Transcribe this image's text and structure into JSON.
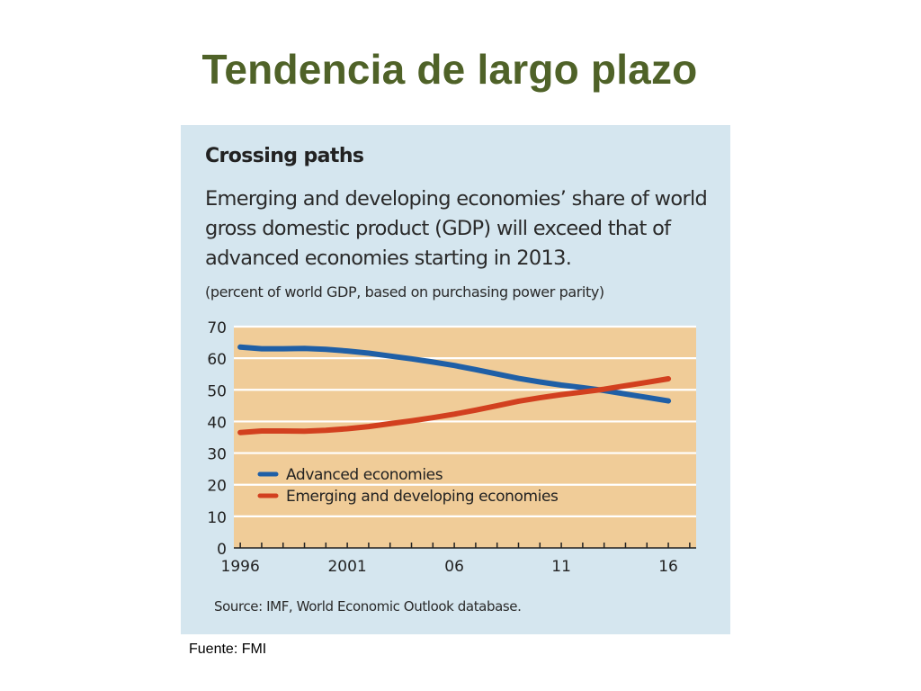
{
  "slide": {
    "title": "Tendencia de largo plazo",
    "footer_note": "Fuente: FMI"
  },
  "panel": {
    "title": "Crossing paths",
    "subtitle": "Emerging and developing economies’ share of world gross domestic product (GDP) will exceed that of advanced economies starting in 2013.",
    "units": "(percent of world GDP, based on purchasing power parity)",
    "source": "Source: IMF, World Economic Outlook database."
  },
  "chart_data": {
    "type": "line",
    "title": "Crossing paths",
    "xlabel": "",
    "ylabel": "",
    "xlim": [
      1995.7,
      2017.3
    ],
    "ylim": [
      0,
      70
    ],
    "grid": true,
    "legend_placement": "lower-left",
    "x_ticks": [
      1996,
      2001,
      2006,
      2011,
      2016
    ],
    "x_tick_labels": [
      "1996",
      "2001",
      "06",
      "11",
      "16"
    ],
    "y_ticks": [
      0,
      10,
      20,
      30,
      40,
      50,
      60,
      70
    ],
    "x": [
      1996,
      1997,
      1998,
      1999,
      2000,
      2001,
      2002,
      2003,
      2004,
      2005,
      2006,
      2007,
      2008,
      2009,
      2010,
      2011,
      2012,
      2013,
      2014,
      2015,
      2016
    ],
    "series": [
      {
        "name": "Advanced economies",
        "color": "#1f5fa6",
        "values": [
          63.5,
          63.0,
          63.0,
          63.1,
          62.8,
          62.3,
          61.6,
          60.7,
          59.8,
          58.8,
          57.7,
          56.4,
          55.0,
          53.6,
          52.5,
          51.5,
          50.7,
          49.8,
          48.7,
          47.6,
          46.5
        ]
      },
      {
        "name": "Emerging and developing economies",
        "color": "#d2401f",
        "values": [
          36.5,
          37.0,
          37.0,
          36.9,
          37.2,
          37.7,
          38.4,
          39.3,
          40.2,
          41.2,
          42.3,
          43.6,
          45.0,
          46.4,
          47.5,
          48.5,
          49.3,
          50.2,
          51.3,
          52.4,
          53.5
        ]
      }
    ],
    "colors": {
      "plot_background": "#f0cc98",
      "grid": "#ffffff",
      "panel_background": "#d5e6ef"
    }
  }
}
